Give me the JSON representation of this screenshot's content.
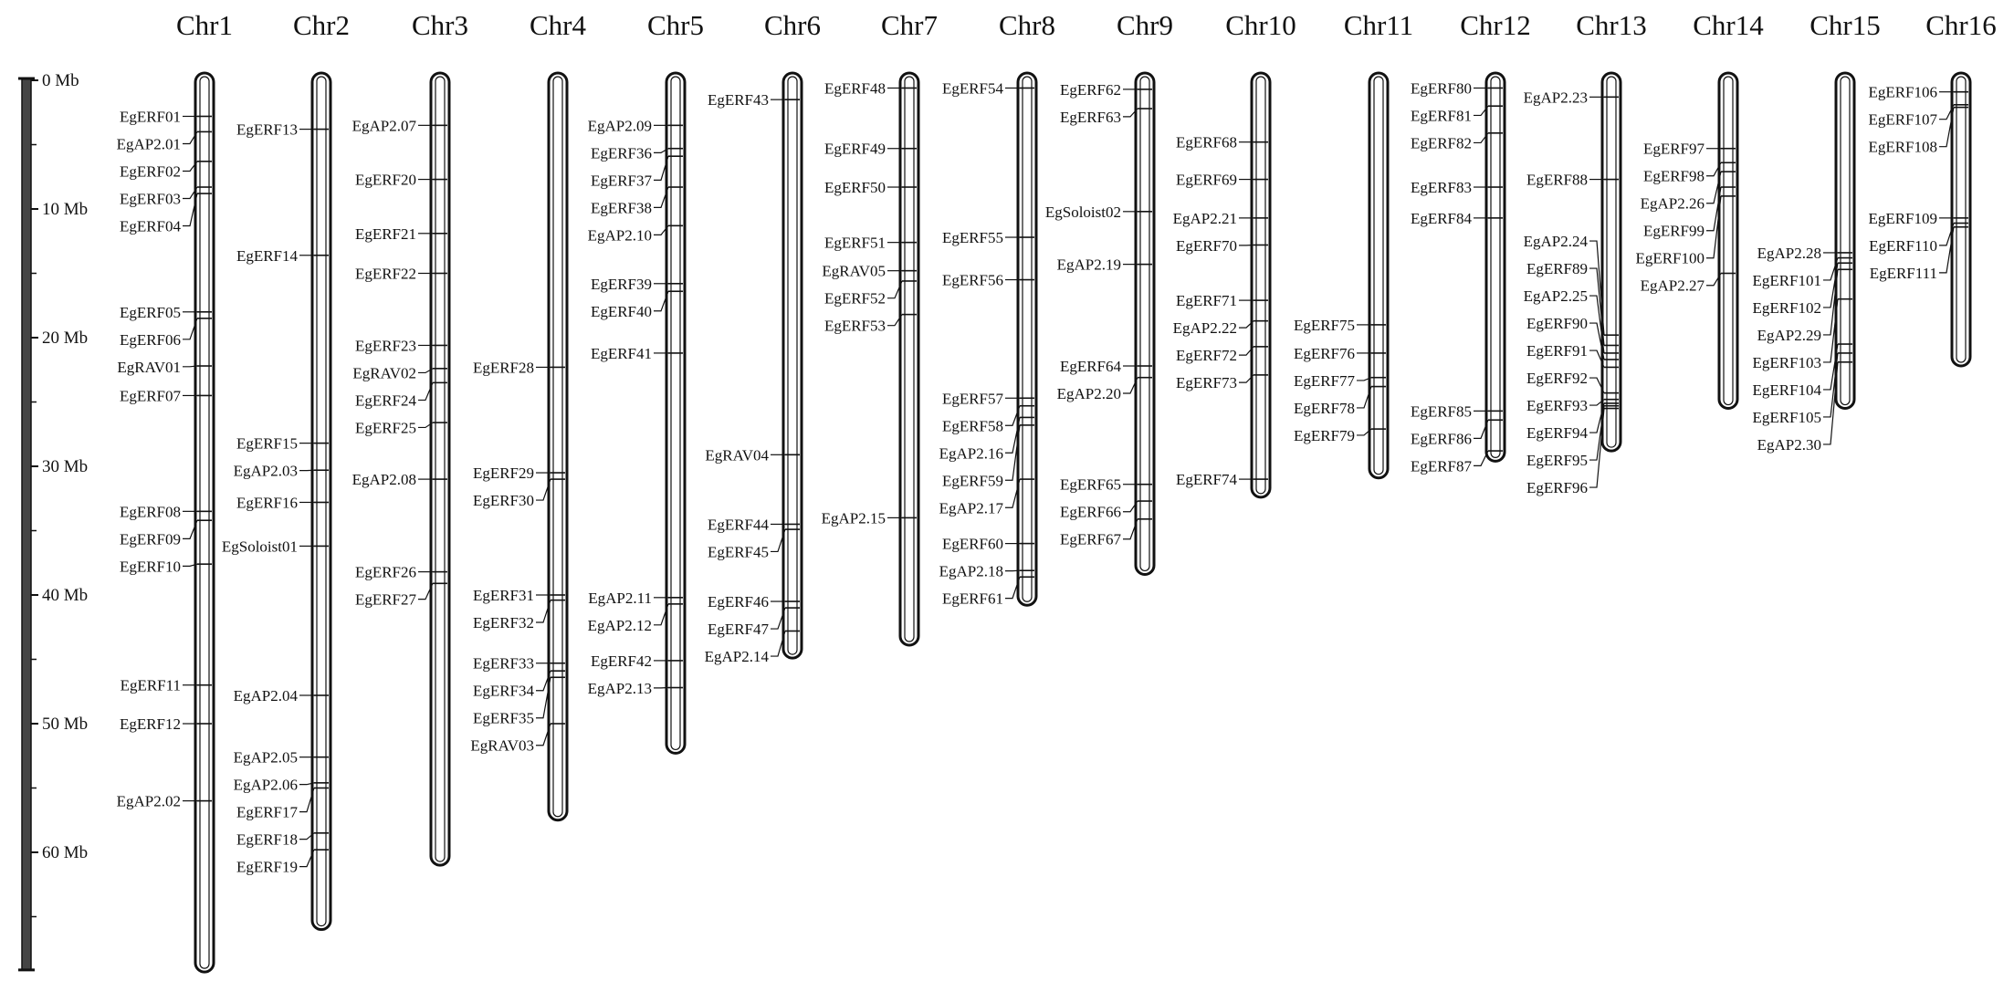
{
  "scale": {
    "unit": "Mb",
    "max_mb": 69,
    "tick_labels": [
      {
        "label": "0 Mb",
        "mb": 0
      },
      {
        "label": "10 Mb",
        "mb": 10
      },
      {
        "label": "20 Mb",
        "mb": 20
      },
      {
        "label": "30 Mb",
        "mb": 30
      },
      {
        "label": "40 Mb",
        "mb": 40
      },
      {
        "label": "50 Mb",
        "mb": 50
      },
      {
        "label": "60 Mb",
        "mb": 60
      }
    ]
  },
  "chromosomes": [
    {
      "name": "Chr1",
      "length_mb": 69.3,
      "genes": [
        {
          "name": "EgERF01",
          "mb": 2.8
        },
        {
          "name": "EgAP2.01",
          "mb": 4.0
        },
        {
          "name": "EgERF02",
          "mb": 6.3
        },
        {
          "name": "EgERF03",
          "mb": 8.3
        },
        {
          "name": "EgERF04",
          "mb": 8.8
        },
        {
          "name": "EgERF05",
          "mb": 18.0
        },
        {
          "name": "EgERF06",
          "mb": 18.5
        },
        {
          "name": "EgRAV01",
          "mb": 22.2
        },
        {
          "name": "EgERF07",
          "mb": 24.5
        },
        {
          "name": "EgERF08",
          "mb": 33.5
        },
        {
          "name": "EgERF09",
          "mb": 34.2
        },
        {
          "name": "EgERF10",
          "mb": 37.6
        },
        {
          "name": "EgERF11",
          "mb": 47.0
        },
        {
          "name": "EgERF12",
          "mb": 50.0
        },
        {
          "name": "EgAP2.02",
          "mb": 56.0
        }
      ]
    },
    {
      "name": "Chr2",
      "length_mb": 66.0,
      "genes": [
        {
          "name": "EgERF13",
          "mb": 3.8
        },
        {
          "name": "EgERF14",
          "mb": 13.6
        },
        {
          "name": "EgERF15",
          "mb": 28.2
        },
        {
          "name": "EgAP2.03",
          "mb": 30.3
        },
        {
          "name": "EgERF16",
          "mb": 32.8
        },
        {
          "name": "EgSoloist01",
          "mb": 36.2
        },
        {
          "name": "EgAP2.04",
          "mb": 47.8
        },
        {
          "name": "EgAP2.05",
          "mb": 52.6
        },
        {
          "name": "EgAP2.06",
          "mb": 54.6
        },
        {
          "name": "EgERF17",
          "mb": 55.0
        },
        {
          "name": "EgERF18",
          "mb": 58.5
        },
        {
          "name": "EgERF19",
          "mb": 59.8
        }
      ]
    },
    {
      "name": "Chr3",
      "length_mb": 61.0,
      "genes": [
        {
          "name": "EgAP2.07",
          "mb": 3.5
        },
        {
          "name": "EgERF20",
          "mb": 7.7
        },
        {
          "name": "EgERF21",
          "mb": 11.9
        },
        {
          "name": "EgERF22",
          "mb": 15.0
        },
        {
          "name": "EgERF23",
          "mb": 20.6
        },
        {
          "name": "EgRAV02",
          "mb": 22.4
        },
        {
          "name": "EgERF24",
          "mb": 23.5
        },
        {
          "name": "EgERF25",
          "mb": 26.6
        },
        {
          "name": "EgAP2.08",
          "mb": 31.0
        },
        {
          "name": "EgERF26",
          "mb": 38.2
        },
        {
          "name": "EgERF27",
          "mb": 39.1
        }
      ]
    },
    {
      "name": "Chr4",
      "length_mb": 57.5,
      "genes": [
        {
          "name": "EgERF28",
          "mb": 22.3
        },
        {
          "name": "EgERF29",
          "mb": 30.5
        },
        {
          "name": "EgERF30",
          "mb": 31.0
        },
        {
          "name": "EgERF31",
          "mb": 40.0
        },
        {
          "name": "EgERF32",
          "mb": 40.4
        },
        {
          "name": "EgERF33",
          "mb": 45.3
        },
        {
          "name": "EgERF34",
          "mb": 45.9
        },
        {
          "name": "EgERF35",
          "mb": 46.4
        },
        {
          "name": "EgRAV03",
          "mb": 50.0
        }
      ]
    },
    {
      "name": "Chr5",
      "length_mb": 52.3,
      "genes": [
        {
          "name": "EgAP2.09",
          "mb": 3.5
        },
        {
          "name": "EgERF36",
          "mb": 5.3
        },
        {
          "name": "EgERF37",
          "mb": 5.9
        },
        {
          "name": "EgERF38",
          "mb": 8.3
        },
        {
          "name": "EgAP2.10",
          "mb": 11.3
        },
        {
          "name": "EgERF39",
          "mb": 15.8
        },
        {
          "name": "EgERF40",
          "mb": 16.4
        },
        {
          "name": "EgERF41",
          "mb": 21.2
        },
        {
          "name": "EgAP2.11",
          "mb": 40.2
        },
        {
          "name": "EgAP2.12",
          "mb": 40.7
        },
        {
          "name": "EgERF42",
          "mb": 45.1
        },
        {
          "name": "EgAP2.13",
          "mb": 47.2
        }
      ]
    },
    {
      "name": "Chr6",
      "length_mb": 44.9,
      "genes": [
        {
          "name": "EgERF43",
          "mb": 1.5
        },
        {
          "name": "EgRAV04",
          "mb": 29.1
        },
        {
          "name": "EgERF44",
          "mb": 34.5
        },
        {
          "name": "EgERF45",
          "mb": 34.9
        },
        {
          "name": "EgERF46",
          "mb": 40.5
        },
        {
          "name": "EgERF47",
          "mb": 41.0
        },
        {
          "name": "EgAP2.14",
          "mb": 42.8
        }
      ]
    },
    {
      "name": "Chr7",
      "length_mb": 43.9,
      "genes": [
        {
          "name": "EgERF48",
          "mb": 0.6
        },
        {
          "name": "EgERF49",
          "mb": 5.3
        },
        {
          "name": "EgERF50",
          "mb": 8.3
        },
        {
          "name": "EgERF51",
          "mb": 12.6
        },
        {
          "name": "EgRAV05",
          "mb": 14.8
        },
        {
          "name": "EgERF52",
          "mb": 15.6
        },
        {
          "name": "EgERF53",
          "mb": 18.2
        },
        {
          "name": "EgAP2.15",
          "mb": 34.0
        }
      ]
    },
    {
      "name": "Chr8",
      "length_mb": 40.8,
      "genes": [
        {
          "name": "EgERF54",
          "mb": 0.6
        },
        {
          "name": "EgERF55",
          "mb": 12.2
        },
        {
          "name": "EgERF56",
          "mb": 15.5
        },
        {
          "name": "EgERF57",
          "mb": 24.7
        },
        {
          "name": "EgERF58",
          "mb": 25.3
        },
        {
          "name": "EgAP2.16",
          "mb": 26.2
        },
        {
          "name": "EgERF59",
          "mb": 26.8
        },
        {
          "name": "EgAP2.17",
          "mb": 31.0
        },
        {
          "name": "EgERF60",
          "mb": 36.0
        },
        {
          "name": "EgAP2.18",
          "mb": 38.1
        },
        {
          "name": "EgERF61",
          "mb": 38.6
        }
      ]
    },
    {
      "name": "Chr9",
      "length_mb": 38.4,
      "genes": [
        {
          "name": "EgERF62",
          "mb": 0.7
        },
        {
          "name": "EgERF63",
          "mb": 2.2
        },
        {
          "name": "EgSoloist02",
          "mb": 10.2
        },
        {
          "name": "EgAP2.19",
          "mb": 14.3
        },
        {
          "name": "EgERF64",
          "mb": 22.2
        },
        {
          "name": "EgAP2.20",
          "mb": 23.1
        },
        {
          "name": "EgERF65",
          "mb": 31.4
        },
        {
          "name": "EgERF66",
          "mb": 32.7
        },
        {
          "name": "EgERF67",
          "mb": 34.1
        }
      ]
    },
    {
      "name": "Chr10",
      "length_mb": 32.4,
      "genes": [
        {
          "name": "EgERF68",
          "mb": 4.8
        },
        {
          "name": "EgERF69",
          "mb": 7.7
        },
        {
          "name": "EgAP2.21",
          "mb": 10.7
        },
        {
          "name": "EgERF70",
          "mb": 12.8
        },
        {
          "name": "EgERF71",
          "mb": 17.1
        },
        {
          "name": "EgAP2.22",
          "mb": 18.7
        },
        {
          "name": "EgERF72",
          "mb": 20.7
        },
        {
          "name": "EgERF73",
          "mb": 22.9
        },
        {
          "name": "EgERF74",
          "mb": 31.0
        }
      ]
    },
    {
      "name": "Chr11",
      "length_mb": 30.9,
      "genes": [
        {
          "name": "EgERF75",
          "mb": 19.0
        },
        {
          "name": "EgERF76",
          "mb": 21.2
        },
        {
          "name": "EgERF77",
          "mb": 23.1
        },
        {
          "name": "EgERF78",
          "mb": 23.8
        },
        {
          "name": "EgERF79",
          "mb": 27.1
        }
      ]
    },
    {
      "name": "Chr12",
      "length_mb": 29.6,
      "genes": [
        {
          "name": "EgERF80",
          "mb": 0.6
        },
        {
          "name": "EgERF81",
          "mb": 2.0
        },
        {
          "name": "EgERF82",
          "mb": 4.1
        },
        {
          "name": "EgERF83",
          "mb": 8.3
        },
        {
          "name": "EgERF84",
          "mb": 10.7
        },
        {
          "name": "EgERF85",
          "mb": 25.7
        },
        {
          "name": "EgERF86",
          "mb": 26.4
        },
        {
          "name": "EgERF87",
          "mb": 28.8
        }
      ]
    },
    {
      "name": "Chr13",
      "length_mb": 28.8,
      "genes": [
        {
          "name": "EgAP2.23",
          "mb": 1.3
        },
        {
          "name": "EgERF88",
          "mb": 7.7
        },
        {
          "name": "EgAP2.24",
          "mb": 19.8
        },
        {
          "name": "EgERF89",
          "mb": 20.6
        },
        {
          "name": "EgAP2.25",
          "mb": 21.2
        },
        {
          "name": "EgERF90",
          "mb": 21.7
        },
        {
          "name": "EgERF91",
          "mb": 22.3
        },
        {
          "name": "EgERF92",
          "mb": 24.3
        },
        {
          "name": "EgERF93",
          "mb": 24.8
        },
        {
          "name": "EgERF94",
          "mb": 25.1
        },
        {
          "name": "EgERF95",
          "mb": 25.3
        },
        {
          "name": "EgERF96",
          "mb": 25.5
        }
      ]
    },
    {
      "name": "Chr14",
      "length_mb": 25.5,
      "genes": [
        {
          "name": "EgERF97",
          "mb": 5.3
        },
        {
          "name": "EgERF98",
          "mb": 6.4
        },
        {
          "name": "EgAP2.26",
          "mb": 7.1
        },
        {
          "name": "EgERF99",
          "mb": 8.3
        },
        {
          "name": "EgERF100",
          "mb": 9.0
        },
        {
          "name": "EgAP2.27",
          "mb": 15.0
        }
      ]
    },
    {
      "name": "Chr15",
      "length_mb": 25.5,
      "genes": [
        {
          "name": "EgAP2.28",
          "mb": 13.4
        },
        {
          "name": "EgERF101",
          "mb": 13.8
        },
        {
          "name": "EgERF102",
          "mb": 14.2
        },
        {
          "name": "EgAP2.29",
          "mb": 14.7
        },
        {
          "name": "EgERF103",
          "mb": 17.0
        },
        {
          "name": "EgERF104",
          "mb": 20.5
        },
        {
          "name": "EgERF105",
          "mb": 21.2
        },
        {
          "name": "EgAP2.30",
          "mb": 21.9
        }
      ]
    },
    {
      "name": "Chr16",
      "length_mb": 22.2,
      "genes": [
        {
          "name": "EgERF106",
          "mb": 0.9
        },
        {
          "name": "EgERF107",
          "mb": 1.9
        },
        {
          "name": "EgERF108",
          "mb": 2.1
        },
        {
          "name": "EgERF109",
          "mb": 10.7
        },
        {
          "name": "EgERF110",
          "mb": 11.1
        },
        {
          "name": "EgERF111",
          "mb": 11.4
        }
      ]
    }
  ]
}
